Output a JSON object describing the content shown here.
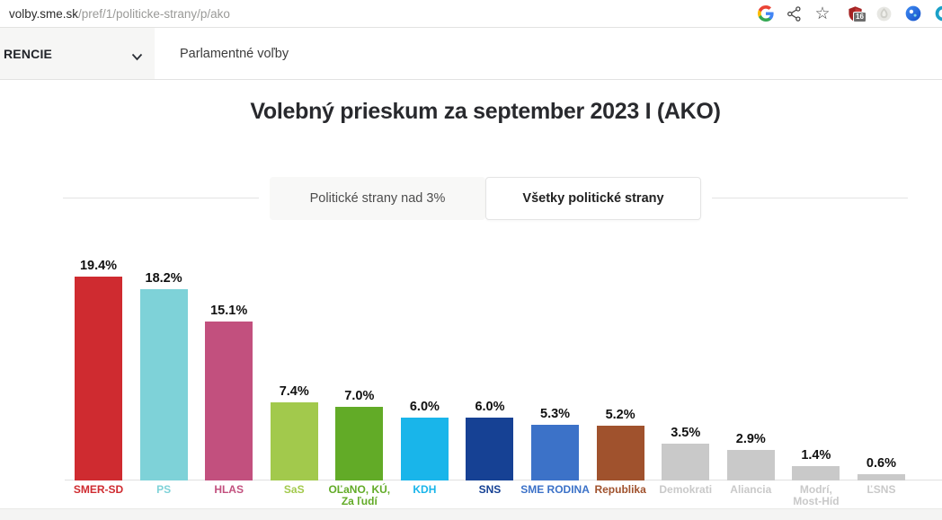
{
  "browser": {
    "url": {
      "host": "volby.sme.sk",
      "path": "/pref/1/politicke-strany/p/ako"
    },
    "toolbar": {
      "bookmark_star_glyph": "☆",
      "ublock_badge": "16"
    }
  },
  "nav": {
    "menu_label": "RENCIE",
    "section_label": "Parlamentné voľby"
  },
  "main": {
    "title": "Volebný prieskum za september 2023 I (AKO)",
    "tabs": [
      {
        "label": "Politické strany nad 3%",
        "active": false
      },
      {
        "label": "Všetky politické strany",
        "active": true
      }
    ]
  },
  "chart_data": {
    "type": "bar",
    "title": "Volebný prieskum za september 2023 I (AKO)",
    "categories": [
      "SMER-SD",
      "PS",
      "HLAS",
      "SaS",
      "OĽaNO, KÚ,\nZa ľudí",
      "KDH",
      "SNS",
      "SME RODINA",
      "Republika",
      "Demokrati",
      "Aliancia",
      "Modrí,\nMost-Híd",
      "ĽSNS"
    ],
    "values": [
      19.4,
      18.2,
      15.1,
      7.4,
      7.0,
      6.0,
      6.0,
      5.3,
      5.2,
      3.5,
      2.9,
      1.4,
      0.6
    ],
    "value_labels": [
      "19.4%",
      "18.2%",
      "15.1%",
      "7.4%",
      "7.0%",
      "6.0%",
      "6.0%",
      "5.3%",
      "5.2%",
      "3.5%",
      "2.9%",
      "1.4%",
      "0.6%"
    ],
    "bar_colors": [
      "#cf2b30",
      "#7ed2d8",
      "#c2507e",
      "#a2c94c",
      "#62ab27",
      "#19b5ea",
      "#164194",
      "#3c72c8",
      "#a0522d",
      "#c9c9c9",
      "#c9c9c9",
      "#c9c9c9",
      "#c9c9c9"
    ],
    "unit": "%",
    "ylim": [
      0,
      20
    ],
    "grid": false,
    "legend": false,
    "value_label_position": "above-bar",
    "category_label_position": "below-axis"
  }
}
